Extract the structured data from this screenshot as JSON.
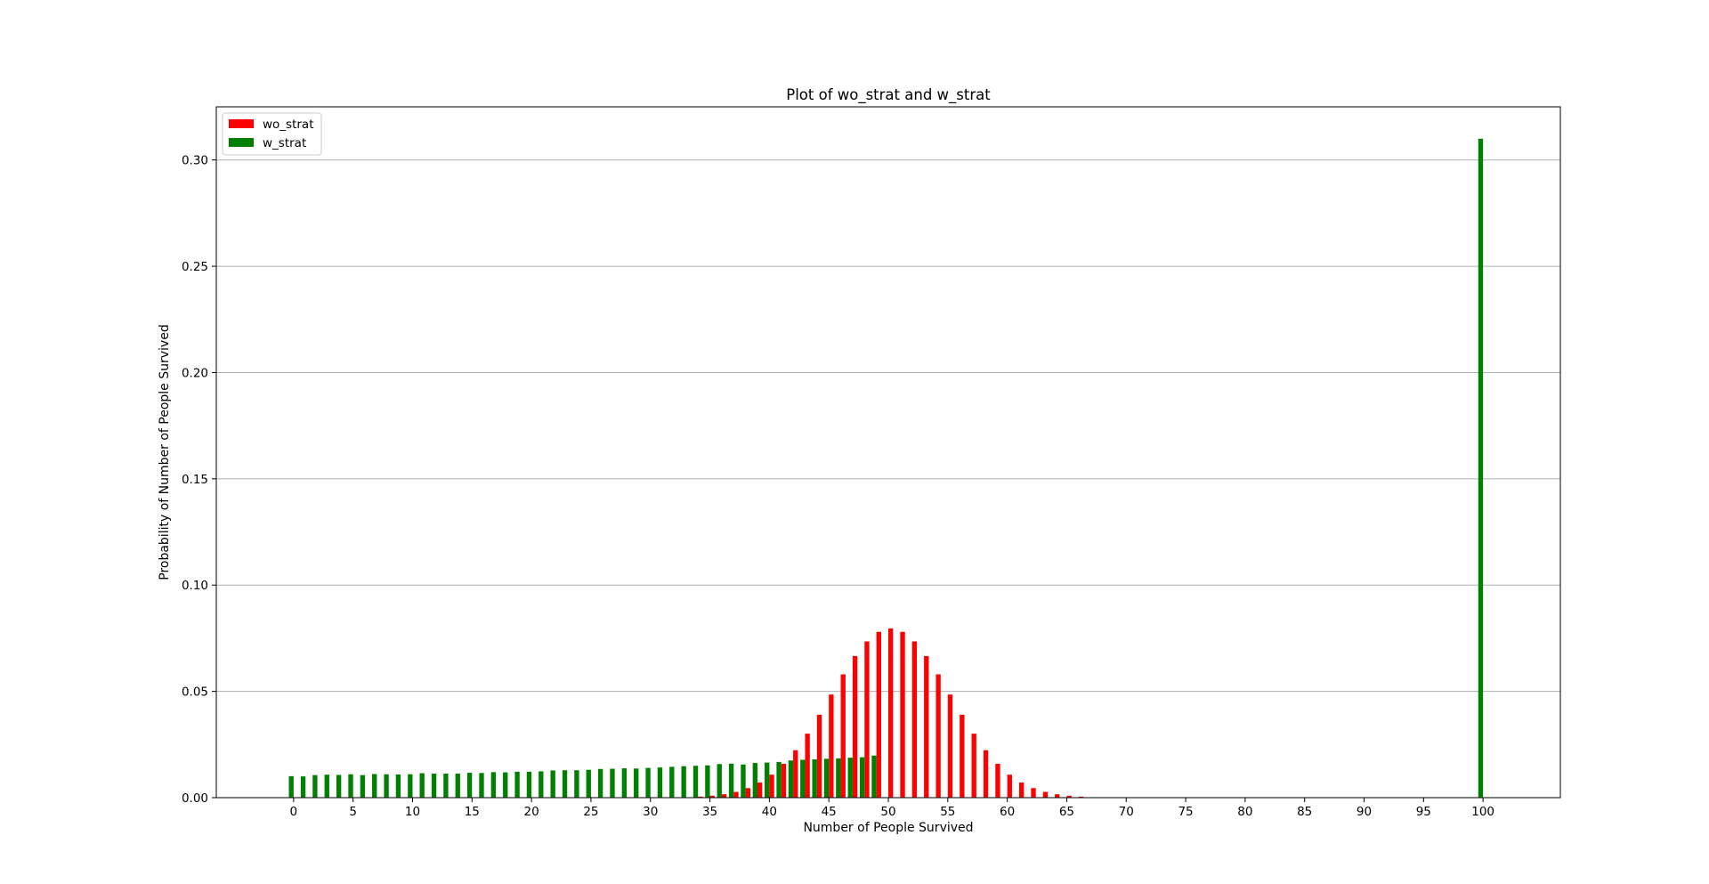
{
  "chart_data": {
    "type": "bar",
    "title": "Plot of wo_strat and w_strat",
    "xlabel": "Number of People Survived",
    "ylabel": "Probability of Number of People Survived",
    "xlim": [
      -6.5,
      106.5
    ],
    "ylim": [
      0,
      0.325
    ],
    "x_ticks": [
      0,
      5,
      10,
      15,
      20,
      25,
      30,
      35,
      40,
      45,
      50,
      55,
      60,
      65,
      70,
      75,
      80,
      85,
      90,
      95,
      100
    ],
    "x_tick_labels": [
      "0",
      "5",
      "10",
      "15",
      "20",
      "25",
      "30",
      "35",
      "40",
      "45",
      "50",
      "55",
      "60",
      "65",
      "70",
      "75",
      "80",
      "85",
      "90",
      "95",
      "100"
    ],
    "y_ticks": [
      0,
      0.05,
      0.1,
      0.15,
      0.2,
      0.25,
      0.3
    ],
    "y_tick_labels": [
      "0.00",
      "0.05",
      "0.10",
      "0.15",
      "0.20",
      "0.25",
      "0.30"
    ],
    "grid": "y",
    "legend_position": "top-left",
    "series": [
      {
        "name": "wo_strat",
        "color": "#ff0000",
        "values": [
          0,
          0,
          0,
          0,
          0,
          0,
          0,
          0,
          0,
          0,
          0,
          0,
          0,
          0,
          0,
          0,
          0,
          0,
          0,
          0,
          0,
          0,
          0,
          0,
          0,
          0,
          0,
          0,
          0,
          0,
          0,
          0,
          0.0001,
          0.0002,
          0.0005,
          0.0009,
          0.0016,
          0.0027,
          0.0045,
          0.0071,
          0.0108,
          0.0159,
          0.0223,
          0.0301,
          0.039,
          0.0485,
          0.058,
          0.0666,
          0.0735,
          0.078,
          0.0796,
          0.078,
          0.0735,
          0.0666,
          0.058,
          0.0485,
          0.039,
          0.0301,
          0.0223,
          0.0159,
          0.0108,
          0.0071,
          0.0045,
          0.0027,
          0.0016,
          0.0009,
          0.0005,
          0.0002,
          0.0001,
          0,
          0,
          0,
          0,
          0,
          0,
          0,
          0,
          0,
          0,
          0,
          0,
          0,
          0,
          0,
          0,
          0,
          0,
          0,
          0,
          0,
          0,
          0,
          0,
          0,
          0,
          0,
          0,
          0,
          0,
          0,
          0
        ]
      },
      {
        "name": "w_strat",
        "color": "#008000",
        "values": [
          0.0101,
          0.01,
          0.0106,
          0.0108,
          0.0107,
          0.011,
          0.0106,
          0.0111,
          0.011,
          0.0109,
          0.011,
          0.0115,
          0.0113,
          0.0113,
          0.0113,
          0.0117,
          0.0116,
          0.012,
          0.0119,
          0.0122,
          0.0122,
          0.0124,
          0.0128,
          0.0129,
          0.0129,
          0.0131,
          0.0135,
          0.0136,
          0.0138,
          0.0137,
          0.014,
          0.0142,
          0.0145,
          0.0148,
          0.015,
          0.0152,
          0.0158,
          0.016,
          0.0156,
          0.0163,
          0.0165,
          0.0168,
          0.0175,
          0.0178,
          0.018,
          0.0183,
          0.0185,
          0.0188,
          0.019,
          0.0198,
          0,
          0,
          0,
          0,
          0,
          0,
          0,
          0,
          0,
          0,
          0,
          0,
          0,
          0,
          0,
          0,
          0,
          0,
          0,
          0,
          0,
          0,
          0,
          0,
          0,
          0,
          0,
          0,
          0,
          0,
          0,
          0,
          0,
          0,
          0,
          0,
          0,
          0,
          0,
          0,
          0,
          0,
          0,
          0,
          0,
          0,
          0,
          0,
          0,
          0,
          0.31
        ]
      }
    ]
  }
}
